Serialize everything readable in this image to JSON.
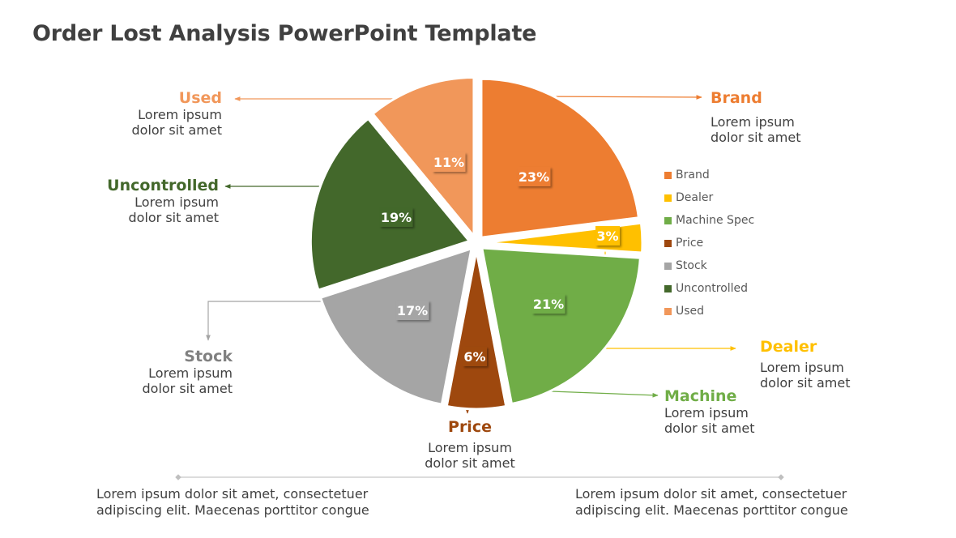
{
  "title": "Order Lost Analysis PowerPoint Template",
  "chart_data": {
    "type": "pie",
    "title": "Order Lost Analysis",
    "exploded": true,
    "start_angle_deg": 0,
    "direction": "clockwise",
    "legend_position": "right",
    "categories": [
      "Brand",
      "Dealer",
      "Machine Spec",
      "Price",
      "Stock",
      "Uncontrolled",
      "Used"
    ],
    "values": [
      23,
      3,
      21,
      6,
      17,
      19,
      11
    ],
    "labels": [
      "23%",
      "3%",
      "21%",
      "6%",
      "17%",
      "19%",
      "11%"
    ],
    "colors": [
      "#ED7D31",
      "#FFC000",
      "#70AD47",
      "#9E480E",
      "#A5A5A5",
      "#43682B",
      "#F1975A"
    ]
  },
  "legend": {
    "items": [
      {
        "label": "Brand",
        "color": "#ED7D31"
      },
      {
        "label": "Dealer",
        "color": "#FFC000"
      },
      {
        "label": "Machine Spec",
        "color": "#70AD47"
      },
      {
        "label": "Price",
        "color": "#9E480E"
      },
      {
        "label": "Stock",
        "color": "#A5A5A5"
      },
      {
        "label": "Uncontrolled",
        "color": "#43682B"
      },
      {
        "label": "Used",
        "color": "#F1975A"
      }
    ]
  },
  "callouts": {
    "brand": {
      "title": "Brand",
      "text": "Lorem ipsum\ndolor sit amet",
      "color": "#ED7D31"
    },
    "dealer": {
      "title": "Dealer",
      "text": "Lorem ipsum\ndolor sit amet",
      "color": "#FFC000"
    },
    "machine": {
      "title": "Machine",
      "text": "Lorem ipsum\ndolor sit amet",
      "color": "#70AD47"
    },
    "price": {
      "title": "Price",
      "text": "Lorem ipsum\ndolor sit amet",
      "color": "#9E480E"
    },
    "stock": {
      "title": "Stock",
      "text": "Lorem ipsum\ndolor sit amet",
      "color": "#808080"
    },
    "uncontrolled": {
      "title": "Uncontrolled",
      "text": "Lorem ipsum\ndolor sit amet",
      "color": "#43682B"
    },
    "used": {
      "title": "Used",
      "text": "Lorem ipsum\ndolor sit amet",
      "color": "#F1975A"
    }
  },
  "footer": {
    "left": "Lorem ipsum dolor sit amet, consectetuer\nadipiscing elit. Maecenas porttitor congue",
    "right": "Lorem ipsum dolor sit amet, consectetuer\nadipiscing elit. Maecenas porttitor congue"
  }
}
